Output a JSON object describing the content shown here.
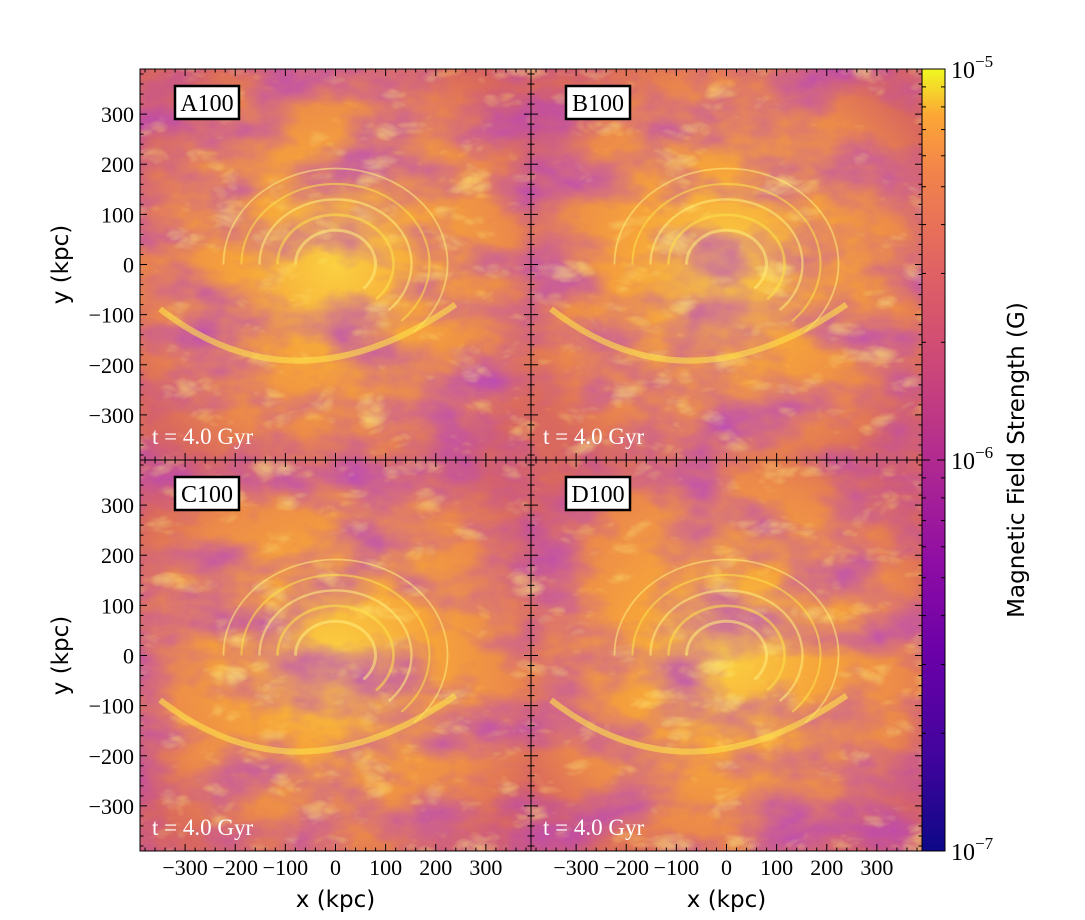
{
  "chart_data": {
    "type": "heatmap",
    "panels": [
      {
        "label": "A100",
        "time_label": "t = 4.0 Gyr"
      },
      {
        "label": "B100",
        "time_label": "t = 4.0 Gyr"
      },
      {
        "label": "C100",
        "time_label": "t = 4.0 Gyr"
      },
      {
        "label": "D100",
        "time_label": "t = 4.0 Gyr"
      }
    ],
    "xlabel": "x  (kpc)",
    "ylabel": "y  (kpc)",
    "xlim": [
      -390,
      390
    ],
    "ylim": [
      -390,
      390
    ],
    "x_ticks": [
      -300,
      -200,
      -100,
      0,
      100,
      200,
      300
    ],
    "y_ticks": [
      300,
      200,
      100,
      0,
      -100,
      -200,
      -300
    ],
    "x_tick_labels": [
      "−300",
      "−200",
      "−100",
      "0",
      "100",
      "200",
      "300"
    ],
    "y_tick_labels": [
      "300",
      "200",
      "100",
      "0",
      "−100",
      "−200",
      "−300"
    ],
    "colorbar": {
      "label": "Magnetic Field Strength  (G)",
      "scale": "log",
      "range": [
        1e-07,
        1e-05
      ],
      "ticks": [
        {
          "base": "10",
          "exp": "−5",
          "value": 1e-05
        },
        {
          "base": "10",
          "exp": "−6",
          "value": 1e-06
        },
        {
          "base": "10",
          "exp": "−7",
          "value": 1e-07
        }
      ],
      "colormap": "plasma"
    }
  }
}
